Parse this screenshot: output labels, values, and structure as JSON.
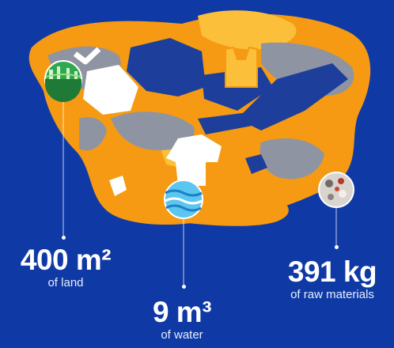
{
  "stats": [
    {
      "value": "400 m²",
      "label": "of land"
    },
    {
      "value": "9 m³",
      "label": "of water"
    },
    {
      "value": "391 kg",
      "label": "of raw materials"
    }
  ],
  "icons": {
    "land": "land-field-icon",
    "water": "water-wave-icon",
    "raw": "raw-materials-icon"
  },
  "colors": {
    "background": "#0f3aa6",
    "orange": "#f59a12",
    "light_orange": "#fbbf3a",
    "grey": "#8f94a3",
    "navy": "#1d3f9b",
    "white": "#ffffff"
  }
}
